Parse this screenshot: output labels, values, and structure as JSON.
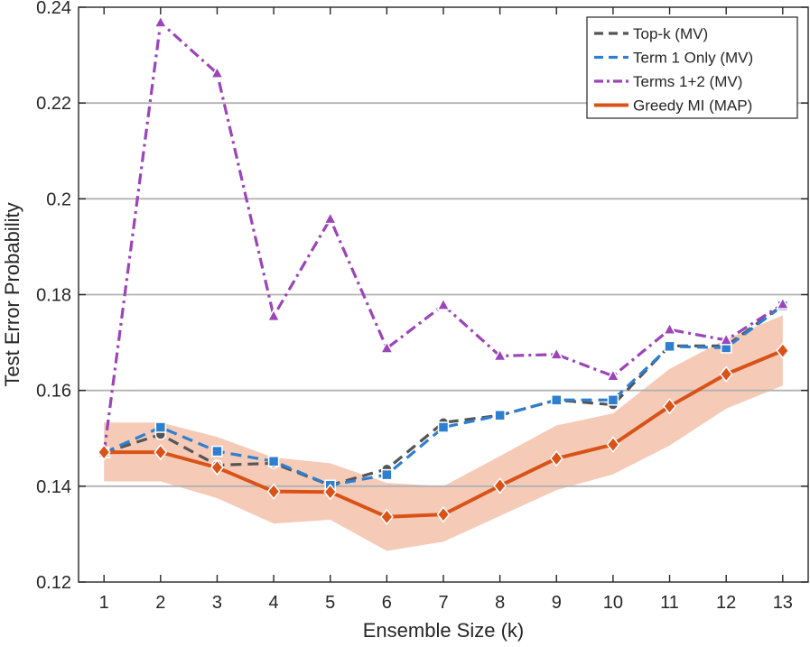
{
  "chart_data": {
    "type": "line",
    "title": "",
    "xlabel": "Ensemble Size (k)",
    "ylabel": "Test Error Probability",
    "xlim": [
      0.55,
      13.45
    ],
    "ylim": [
      0.12,
      0.24
    ],
    "x": [
      1,
      2,
      3,
      4,
      5,
      6,
      7,
      8,
      9,
      10,
      11,
      12,
      13
    ],
    "xticks": [
      "1",
      "2",
      "3",
      "4",
      "5",
      "6",
      "7",
      "8",
      "9",
      "10",
      "11",
      "12",
      "13"
    ],
    "yticks": [
      "0.12",
      "0.14",
      "0.16",
      "0.18",
      "0.2",
      "0.22",
      "0.24"
    ],
    "ytick_values": [
      0.12,
      0.14,
      0.16,
      0.18,
      0.2,
      0.22,
      0.24
    ],
    "grid": "horizontal",
    "legend_position": "top-right",
    "band": {
      "series": "Greedy MI (MAP)",
      "lower": [
        0.141,
        0.141,
        0.1375,
        0.1322,
        0.133,
        0.1265,
        0.1284,
        0.1338,
        0.1392,
        0.1425,
        0.1485,
        0.1562,
        0.161
      ],
      "upper": [
        0.1533,
        0.1533,
        0.1503,
        0.146,
        0.1448,
        0.1407,
        0.14,
        0.1463,
        0.1527,
        0.1552,
        0.1645,
        0.1707,
        0.1757
      ],
      "color": "#f5cbb8"
    },
    "series": [
      {
        "name": "Top-k (MV)",
        "values": [
          0.147,
          0.1508,
          0.1444,
          0.1448,
          0.1402,
          0.1436,
          0.1533,
          0.1548,
          0.158,
          0.157,
          0.1693,
          0.1693,
          0.1778
        ],
        "color": "#555555",
        "dash": "dash",
        "marker": "circle"
      },
      {
        "name": "Term 1 Only (MV)",
        "values": [
          0.147,
          0.1523,
          0.1473,
          0.1452,
          0.1402,
          0.1424,
          0.1523,
          0.1548,
          0.158,
          0.158,
          0.1692,
          0.1689,
          0.1777
        ],
        "color": "#2f7fd0",
        "dash": "dash",
        "marker": "square"
      },
      {
        "name": "Terms 1+2 (MV)",
        "values": [
          0.147,
          0.2368,
          0.2262,
          0.1755,
          0.1958,
          0.1688,
          0.1778,
          0.1672,
          0.1675,
          0.163,
          0.1727,
          0.1705,
          0.178
        ],
        "color": "#9b45b8",
        "dash": "dashdot",
        "marker": "triangle"
      },
      {
        "name": "Greedy MI (MAP)",
        "values": [
          0.1471,
          0.1471,
          0.1439,
          0.1389,
          0.1388,
          0.1336,
          0.1341,
          0.1401,
          0.1458,
          0.1487,
          0.1567,
          0.1634,
          0.1683
        ],
        "color": "#d95319",
        "dash": "solid",
        "marker": "diamond"
      }
    ]
  }
}
